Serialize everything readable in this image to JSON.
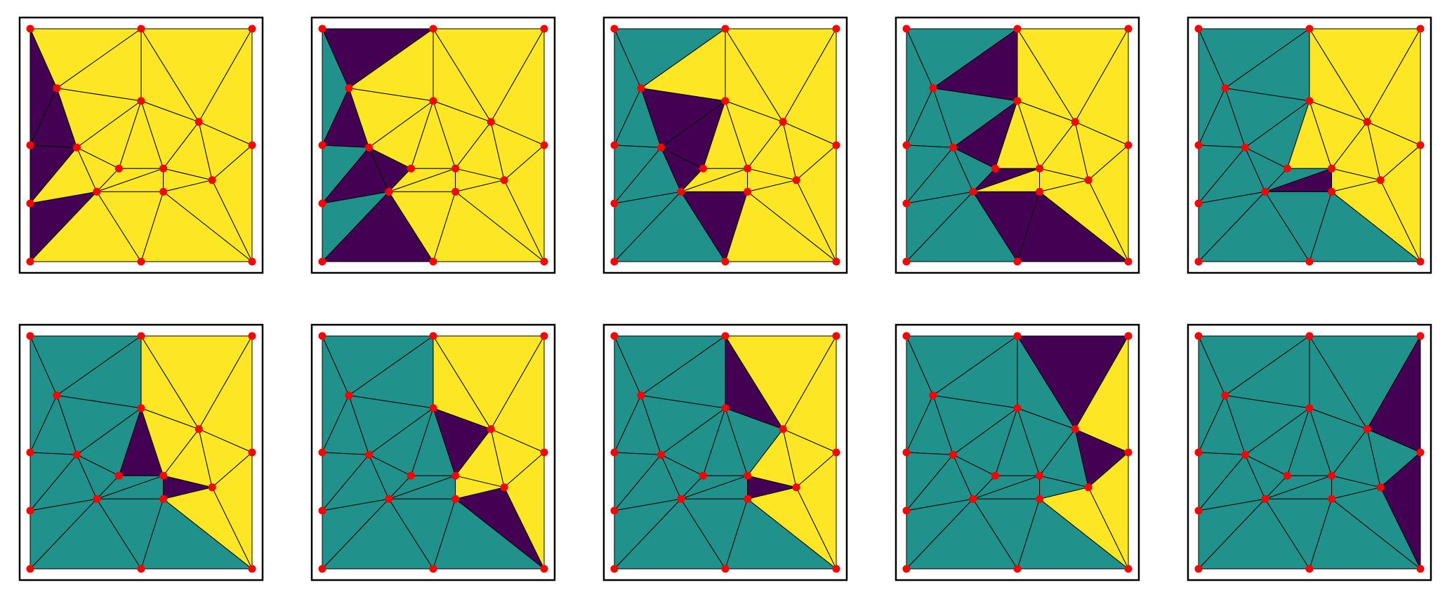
{
  "colors": {
    "background": "#ffffff",
    "region_yellow": "#fde725",
    "region_teal": "#21918c",
    "region_purple": "#440154",
    "edge": "#000000",
    "vertex": "#ff0000",
    "frame": "#000000"
  },
  "mesh": {
    "vertices": [
      [
        0.0,
        1.0
      ],
      [
        0.5,
        1.0
      ],
      [
        1.0,
        1.0
      ],
      [
        0.12,
        0.745
      ],
      [
        0.5,
        0.69
      ],
      [
        0.76,
        0.6
      ],
      [
        0.0,
        0.5
      ],
      [
        0.21,
        0.49
      ],
      [
        0.4,
        0.4
      ],
      [
        0.6,
        0.4
      ],
      [
        0.82,
        0.35
      ],
      [
        1.0,
        0.5
      ],
      [
        0.0,
        0.25
      ],
      [
        0.3,
        0.3
      ],
      [
        0.6,
        0.3
      ],
      [
        0.0,
        0.0
      ],
      [
        0.5,
        0.0
      ],
      [
        1.0,
        0.0
      ]
    ],
    "triangles": [
      [
        0,
        3,
        6
      ],
      [
        0,
        1,
        3
      ],
      [
        1,
        3,
        4
      ],
      [
        1,
        4,
        5
      ],
      [
        1,
        2,
        5
      ],
      [
        2,
        5,
        11
      ],
      [
        3,
        4,
        7
      ],
      [
        3,
        6,
        7
      ],
      [
        4,
        7,
        8
      ],
      [
        4,
        8,
        9
      ],
      [
        4,
        5,
        9
      ],
      [
        5,
        9,
        10
      ],
      [
        5,
        10,
        11
      ],
      [
        6,
        7,
        12
      ],
      [
        7,
        12,
        13
      ],
      [
        7,
        8,
        13
      ],
      [
        8,
        9,
        13
      ],
      [
        9,
        13,
        14
      ],
      [
        9,
        10,
        14
      ],
      [
        10,
        11,
        17
      ],
      [
        10,
        14,
        17
      ],
      [
        12,
        13,
        15
      ],
      [
        13,
        15,
        16
      ],
      [
        13,
        14,
        16
      ],
      [
        14,
        16,
        17
      ]
    ]
  },
  "panels": [
    {
      "region_colors": [
        "P",
        "Y",
        "Y",
        "Y",
        "Y",
        "Y",
        "Y",
        "P",
        "Y",
        "Y",
        "Y",
        "Y",
        "Y",
        "P",
        "Y",
        "Y",
        "Y",
        "Y",
        "Y",
        "Y",
        "Y",
        "P",
        "Y",
        "Y",
        "Y"
      ]
    },
    {
      "region_colors": [
        "T",
        "P",
        "Y",
        "Y",
        "Y",
        "Y",
        "Y",
        "P",
        "Y",
        "Y",
        "Y",
        "Y",
        "Y",
        "T",
        "P",
        "P",
        "Y",
        "Y",
        "Y",
        "Y",
        "Y",
        "T",
        "P",
        "Y",
        "Y"
      ]
    },
    {
      "region_colors": [
        "T",
        "T",
        "Y",
        "Y",
        "Y",
        "Y",
        "P",
        "T",
        "P",
        "Y",
        "Y",
        "Y",
        "Y",
        "T",
        "T",
        "P",
        "Y",
        "Y",
        "Y",
        "Y",
        "Y",
        "T",
        "T",
        "P",
        "Y"
      ]
    },
    {
      "region_colors": [
        "T",
        "T",
        "P",
        "Y",
        "Y",
        "Y",
        "T",
        "T",
        "P",
        "Y",
        "Y",
        "Y",
        "Y",
        "T",
        "T",
        "T",
        "P",
        "Y",
        "Y",
        "Y",
        "Y",
        "T",
        "T",
        "P",
        "P"
      ]
    },
    {
      "region_colors": [
        "T",
        "T",
        "T",
        "Y",
        "Y",
        "Y",
        "T",
        "T",
        "T",
        "Y",
        "Y",
        "Y",
        "Y",
        "T",
        "T",
        "T",
        "T",
        "P",
        "Y",
        "Y",
        "Y",
        "T",
        "T",
        "T",
        "T"
      ]
    },
    {
      "region_colors": [
        "T",
        "T",
        "T",
        "Y",
        "Y",
        "Y",
        "T",
        "T",
        "T",
        "P",
        "Y",
        "Y",
        "Y",
        "T",
        "T",
        "T",
        "T",
        "T",
        "P",
        "Y",
        "Y",
        "T",
        "T",
        "T",
        "T"
      ]
    },
    {
      "region_colors": [
        "T",
        "T",
        "T",
        "Y",
        "Y",
        "Y",
        "T",
        "T",
        "T",
        "T",
        "P",
        "Y",
        "Y",
        "T",
        "T",
        "T",
        "T",
        "T",
        "Y",
        "Y",
        "P",
        "T",
        "T",
        "T",
        "T"
      ]
    },
    {
      "region_colors": [
        "T",
        "T",
        "T",
        "P",
        "Y",
        "Y",
        "T",
        "T",
        "T",
        "T",
        "T",
        "Y",
        "Y",
        "T",
        "T",
        "T",
        "T",
        "T",
        "P",
        "Y",
        "Y",
        "T",
        "T",
        "T",
        "T"
      ]
    },
    {
      "region_colors": [
        "T",
        "T",
        "T",
        "T",
        "P",
        "Y",
        "T",
        "T",
        "T",
        "T",
        "T",
        "T",
        "P",
        "T",
        "T",
        "T",
        "T",
        "T",
        "T",
        "Y",
        "Y",
        "T",
        "T",
        "T",
        "T"
      ]
    },
    {
      "region_colors": [
        "T",
        "T",
        "T",
        "T",
        "T",
        "P",
        "T",
        "T",
        "T",
        "T",
        "T",
        "T",
        "T",
        "T",
        "T",
        "T",
        "T",
        "T",
        "T",
        "P",
        "T",
        "T",
        "T",
        "T",
        "T"
      ]
    }
  ]
}
